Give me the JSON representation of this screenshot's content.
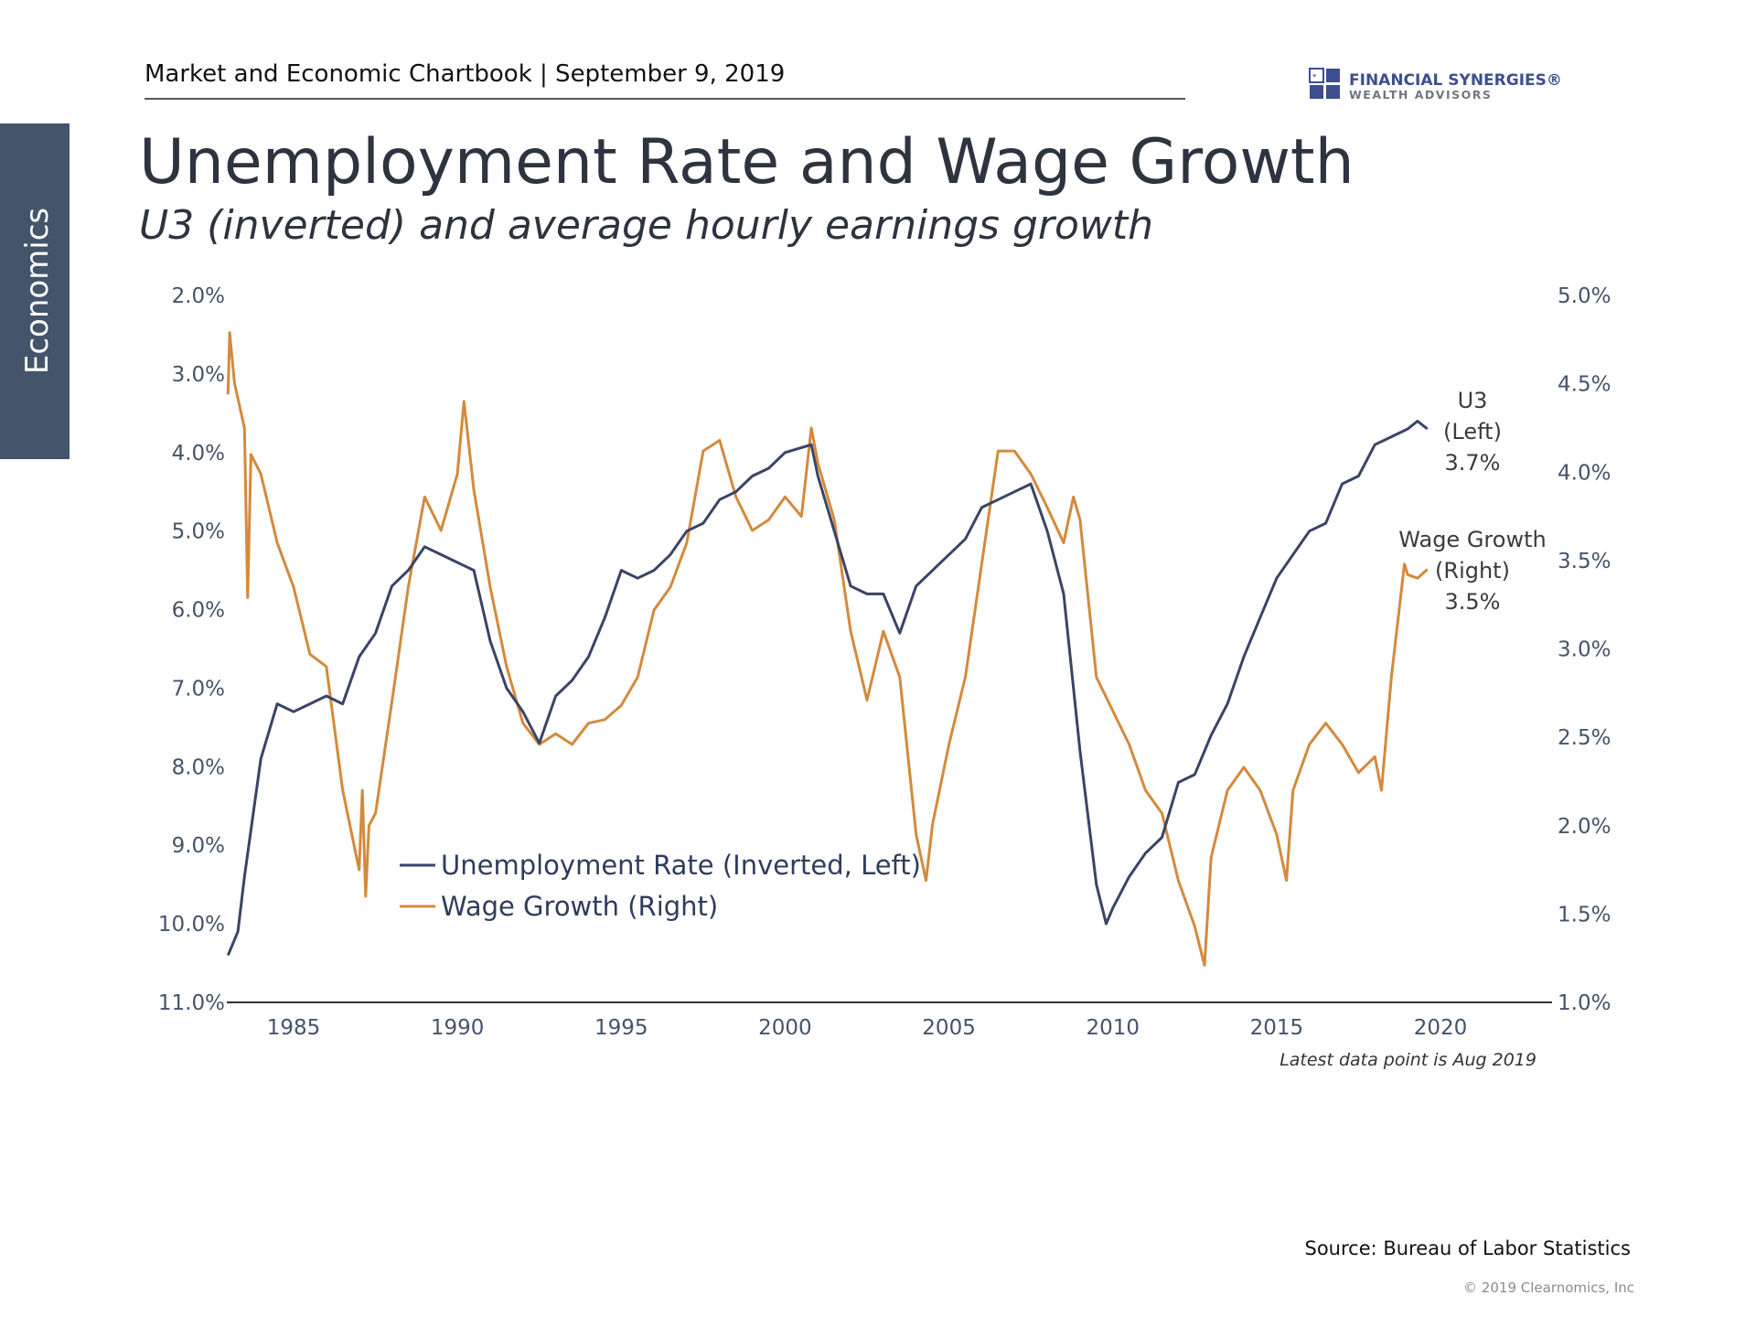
{
  "header": {
    "breadcrumb": "Market and Economic Chartbook | September 9, 2019",
    "title": "Unemployment Rate and Wage Growth",
    "subtitle": "U3 (inverted) and average hourly earnings growth",
    "section_tab": "Economics"
  },
  "logo": {
    "line1": "FINANCIAL SYNERGIES®",
    "line2": "WEALTH ADVISORS",
    "color": "#3d4f8f"
  },
  "footer": {
    "source": "Source: Bureau of Labor Statistics",
    "copyright": "© 2019 Clearnomics, Inc"
  },
  "chart_data": {
    "type": "line",
    "title": "Unemployment Rate and Wage Growth",
    "subtitle": "U3 (inverted) and average hourly earnings growth",
    "note": "Latest data point is Aug 2019",
    "legend_position": "bottom-left",
    "grid": false,
    "x_ticks": [
      "1985",
      "1990",
      "1995",
      "2000",
      "2005",
      "2010",
      "2015",
      "2020"
    ],
    "x_range": [
      1983,
      2023.5
    ],
    "left_axis": {
      "inverted": true,
      "range": [
        2.0,
        11.0
      ],
      "ticks": [
        "2.0%",
        "3.0%",
        "4.0%",
        "5.0%",
        "6.0%",
        "7.0%",
        "8.0%",
        "9.0%",
        "10.0%",
        "11.0%"
      ]
    },
    "right_axis": {
      "range": [
        1.0,
        5.0
      ],
      "ticks": [
        "1.0%",
        "1.5%",
        "2.0%",
        "2.5%",
        "3.0%",
        "3.5%",
        "4.0%",
        "4.5%",
        "5.0%"
      ]
    },
    "series": [
      {
        "name": "Unemployment Rate (Inverted, Left)",
        "axis": "left",
        "color": "#3a4466",
        "end_label": [
          "U3",
          "(Left)",
          "3.7%"
        ],
        "x": [
          1983.0,
          1983.3,
          1983.5,
          1984.0,
          1984.5,
          1985.0,
          1985.5,
          1986.0,
          1986.5,
          1987.0,
          1987.5,
          1988.0,
          1988.5,
          1989.0,
          1989.5,
          1990.0,
          1990.5,
          1991.0,
          1991.5,
          1992.0,
          1992.5,
          1993.0,
          1993.5,
          1994.0,
          1994.5,
          1995.0,
          1995.5,
          1996.0,
          1996.5,
          1997.0,
          1997.5,
          1998.0,
          1998.5,
          1999.0,
          1999.5,
          2000.0,
          2000.8,
          2001.0,
          2001.5,
          2002.0,
          2002.5,
          2003.0,
          2003.5,
          2004.0,
          2004.5,
          2005.0,
          2005.5,
          2006.0,
          2006.5,
          2007.0,
          2007.5,
          2008.0,
          2008.5,
          2009.0,
          2009.5,
          2009.8,
          2010.0,
          2010.5,
          2011.0,
          2011.5,
          2012.0,
          2012.5,
          2013.0,
          2013.5,
          2014.0,
          2014.5,
          2015.0,
          2015.5,
          2016.0,
          2016.5,
          2017.0,
          2017.5,
          2018.0,
          2018.5,
          2019.0,
          2019.3,
          2019.6
        ],
        "y": [
          10.4,
          10.1,
          9.4,
          7.9,
          7.2,
          7.3,
          7.2,
          7.1,
          7.2,
          6.6,
          6.3,
          5.7,
          5.5,
          5.2,
          5.3,
          5.4,
          5.5,
          6.4,
          7.0,
          7.3,
          7.7,
          7.1,
          6.9,
          6.6,
          6.1,
          5.5,
          5.6,
          5.5,
          5.3,
          5.0,
          4.9,
          4.6,
          4.5,
          4.3,
          4.2,
          4.0,
          3.9,
          4.3,
          5.0,
          5.7,
          5.8,
          5.8,
          6.3,
          5.7,
          5.5,
          5.3,
          5.1,
          4.7,
          4.6,
          4.5,
          4.4,
          5.0,
          5.8,
          7.8,
          9.5,
          10.0,
          9.8,
          9.4,
          9.1,
          8.9,
          8.2,
          8.1,
          7.6,
          7.2,
          6.6,
          6.1,
          5.6,
          5.3,
          5.0,
          4.9,
          4.4,
          4.3,
          3.9,
          3.8,
          3.7,
          3.6,
          3.7
        ]
      },
      {
        "name": "Wage Growth (Right)",
        "axis": "right",
        "color": "#d48a3c",
        "end_label": [
          "Wage Growth",
          "(Right)",
          "3.5%"
        ],
        "x": [
          1983.0,
          1983.05,
          1983.2,
          1983.5,
          1983.6,
          1983.7,
          1984.0,
          1984.5,
          1985.0,
          1985.5,
          1986.0,
          1986.5,
          1987.0,
          1987.1,
          1987.2,
          1987.3,
          1987.5,
          1988.0,
          1988.5,
          1989.0,
          1989.5,
          1990.0,
          1990.2,
          1990.5,
          1991.0,
          1991.5,
          1992.0,
          1992.5,
          1993.0,
          1993.5,
          1994.0,
          1994.5,
          1995.0,
          1995.5,
          1996.0,
          1996.5,
          1997.0,
          1997.5,
          1998.0,
          1998.5,
          1999.0,
          1999.5,
          2000.0,
          2000.5,
          2000.8,
          2001.0,
          2001.5,
          2002.0,
          2002.5,
          2003.0,
          2003.5,
          2004.0,
          2004.3,
          2004.5,
          2005.0,
          2005.5,
          2006.0,
          2006.5,
          2007.0,
          2007.5,
          2008.0,
          2008.5,
          2008.8,
          2009.0,
          2009.5,
          2010.0,
          2010.5,
          2011.0,
          2011.5,
          2012.0,
          2012.5,
          2012.8,
          2013.0,
          2013.5,
          2014.0,
          2014.5,
          2015.0,
          2015.3,
          2015.5,
          2016.0,
          2016.5,
          2017.0,
          2017.5,
          2018.0,
          2018.2,
          2018.5,
          2018.9,
          2019.0,
          2019.3,
          2019.6
        ],
        "y": [
          4.44,
          4.79,
          4.5,
          4.25,
          3.29,
          4.1,
          3.99,
          3.6,
          3.35,
          2.97,
          2.9,
          2.2,
          1.75,
          2.2,
          1.6,
          2.0,
          2.07,
          2.7,
          3.35,
          3.86,
          3.67,
          3.99,
          4.4,
          3.9,
          3.35,
          2.9,
          2.58,
          2.46,
          2.52,
          2.46,
          2.58,
          2.6,
          2.68,
          2.84,
          3.22,
          3.35,
          3.6,
          4.12,
          4.18,
          3.86,
          3.67,
          3.73,
          3.86,
          3.75,
          4.25,
          4.05,
          3.73,
          3.1,
          2.71,
          3.1,
          2.84,
          1.95,
          1.69,
          2.01,
          2.46,
          2.84,
          3.48,
          4.12,
          4.12,
          3.99,
          3.8,
          3.6,
          3.86,
          3.73,
          2.84,
          2.65,
          2.46,
          2.2,
          2.07,
          1.69,
          1.43,
          1.21,
          1.82,
          2.2,
          2.33,
          2.2,
          1.95,
          1.69,
          2.2,
          2.46,
          2.58,
          2.46,
          2.3,
          2.39,
          2.2,
          2.84,
          3.48,
          3.42,
          3.4,
          3.45
        ]
      }
    ]
  }
}
